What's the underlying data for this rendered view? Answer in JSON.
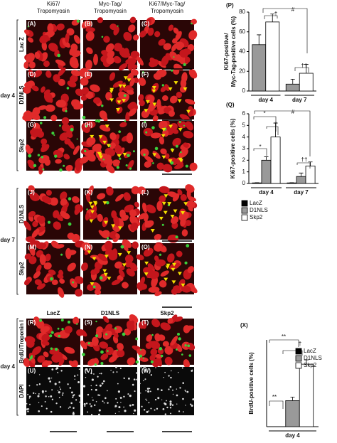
{
  "figure": {
    "column_headers": [
      [
        "Ki67/",
        "Tropomyosin"
      ],
      [
        "Myc-Tag/",
        "Tropomyosin"
      ],
      [
        "Ki67/Myc-Tag/",
        "Tropomyosin"
      ]
    ],
    "panel_labels": [
      "(A)",
      "(B)",
      "(C)",
      "(D)",
      "(E)",
      "(F)",
      "(G)",
      "(H)",
      "(I)",
      "(J)",
      "(K)",
      "(L)",
      "(M)",
      "(N)",
      "(O)",
      "(R)",
      "(S)",
      "(T)",
      "(U)",
      "(V)",
      "(W)"
    ],
    "row_labels": [
      "Lac Z",
      "D1NLS",
      "Skp2",
      "D1NLS",
      "Skp2"
    ],
    "day_labels": [
      "day 4",
      "day 7",
      "day 4"
    ],
    "bottom_headers": [
      "LacZ",
      "D1NLS",
      "Skp2"
    ],
    "bottom_row_labels": [
      "BrdU/Troponin I",
      "DAPI"
    ]
  },
  "chart_data": [
    {
      "type": "bar",
      "panel": "(P)",
      "y_label": [
        "Ki67-positive/",
        "Myc-Tag-positive cells (%)"
      ],
      "categories": [
        "day 4",
        "day 7"
      ],
      "series": [
        {
          "name": "D1NLS",
          "color": "#999999",
          "values": [
            47,
            7
          ],
          "errors": [
            10,
            5
          ]
        },
        {
          "name": "Skp2",
          "color": "#ffffff",
          "values": [
            70,
            18
          ],
          "errors": [
            8,
            9
          ]
        }
      ],
      "ylim": [
        0,
        80
      ],
      "yticks": [
        0,
        20,
        40,
        60,
        80
      ],
      "legend": false,
      "annotations": [
        "†",
        "#",
        "††"
      ]
    },
    {
      "type": "bar",
      "panel": "(Q)",
      "y_label": [
        "Ki67-positive cells (%)"
      ],
      "categories": [
        "day 4",
        "day 7"
      ],
      "series": [
        {
          "name": "LacZ",
          "color": "#000000",
          "values": [
            0.05,
            0.05
          ],
          "errors": [
            0.02,
            0.02
          ]
        },
        {
          "name": "D1NLS",
          "color": "#999999",
          "values": [
            2,
            0.6
          ],
          "errors": [
            0.3,
            0.3
          ]
        },
        {
          "name": "Skp2",
          "color": "#ffffff",
          "values": [
            4,
            1.5
          ],
          "errors": [
            1.2,
            0.35
          ]
        }
      ],
      "ylim": [
        0,
        6
      ],
      "yticks": [
        0,
        1,
        2,
        3,
        4,
        5,
        6
      ],
      "legend": true,
      "annotations": [
        "*",
        "*",
        "†",
        "#",
        "††"
      ]
    },
    {
      "type": "bar",
      "panel": "(X)",
      "y_label": [
        "BrdU-positive cells (%)"
      ],
      "categories": [
        "day 4"
      ],
      "series": [
        {
          "name": "LacZ",
          "color": "#000000",
          "values": [
            0
          ],
          "errors": [
            0
          ]
        },
        {
          "name": "D1NLS",
          "color": "#999999",
          "values": [
            1.5
          ],
          "errors": [
            0.2
          ]
        },
        {
          "name": "Skp2",
          "color": "#ffffff",
          "values": [
            3.6
          ],
          "errors": [
            0.25
          ]
        }
      ],
      "ylim": [
        0,
        5
      ],
      "legend": true,
      "annotations": [
        "**",
        "**",
        "†"
      ]
    }
  ]
}
